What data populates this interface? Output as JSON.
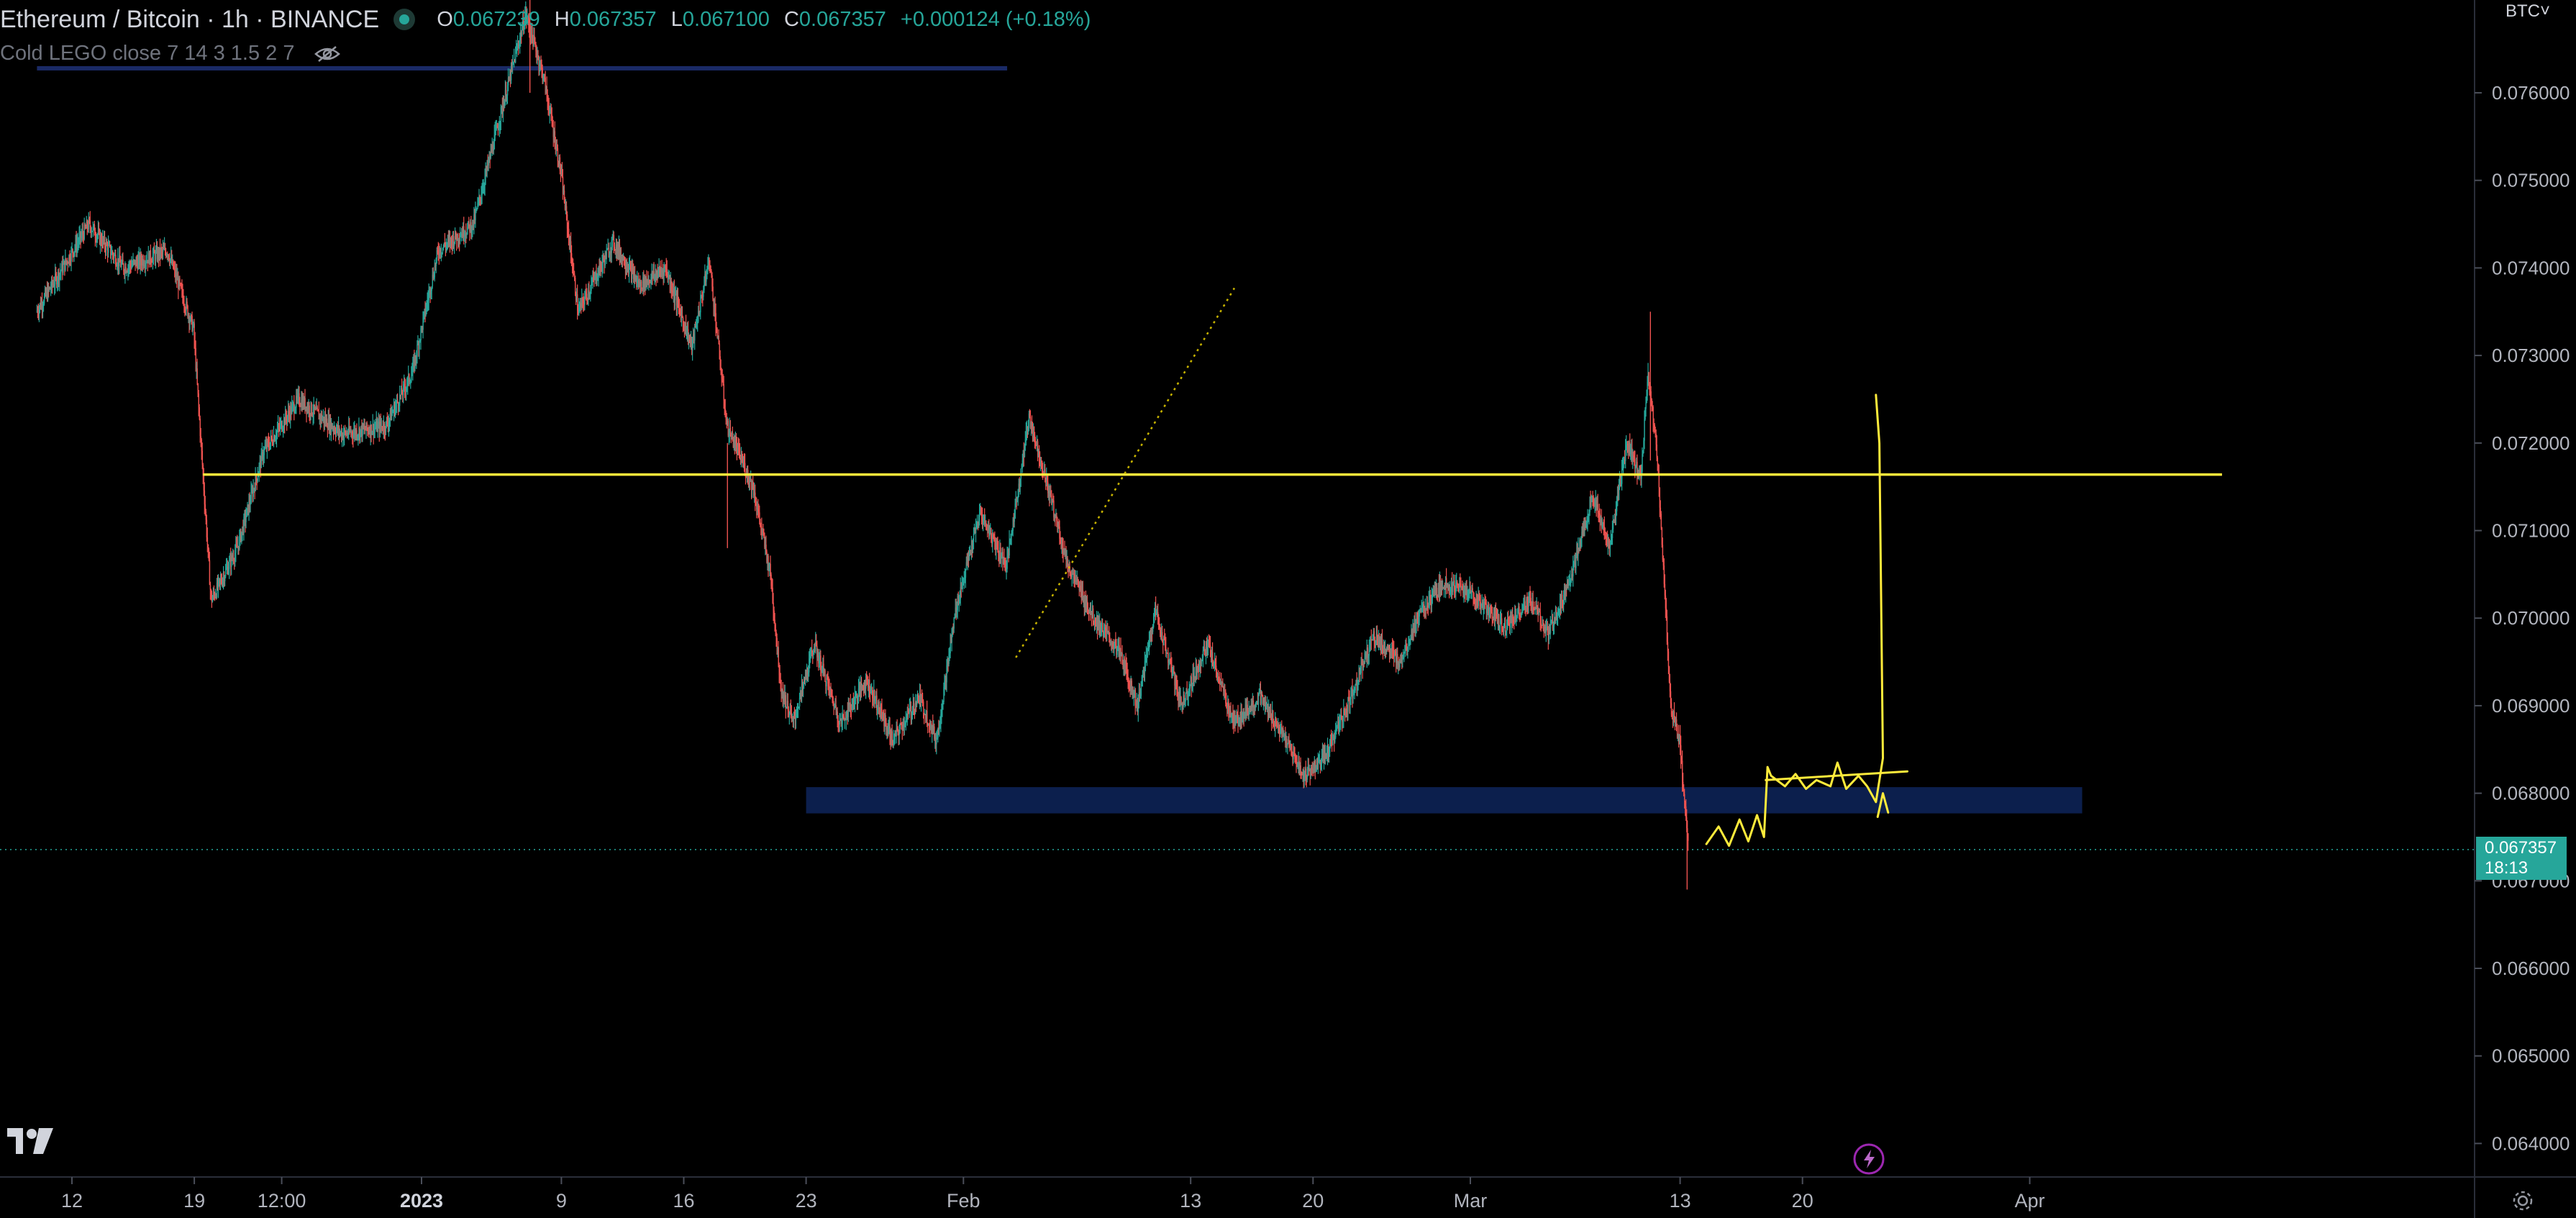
{
  "header": {
    "symbol": "Ethereum / Bitcoin · 1h · BINANCE",
    "ohlc": [
      {
        "k": "O",
        "v": "0.067239"
      },
      {
        "k": "H",
        "v": "0.067357"
      },
      {
        "k": "L",
        "v": "0.067100"
      },
      {
        "k": "C",
        "v": "0.067357"
      }
    ],
    "change": "+0.000124 (+0.18%)",
    "indicator": "Cold LEGO close 7 14 3 1.5 2 7"
  },
  "axis": {
    "unit": "BTC˅",
    "last_price": "0.067357",
    "countdown": "18:13"
  },
  "colors": {
    "background": "#000000",
    "up": "#26a69a",
    "down": "#ef5350",
    "support_zone": "#0c1f4d",
    "resistance": "#ffeb3b",
    "drawing": "#ffeb3b"
  },
  "icons": [
    "tradingview-logo-icon",
    "bolt-icon",
    "gear-icon",
    "eye-off-icon"
  ],
  "chart_data": {
    "type": "candlestick",
    "title": "Ethereum / Bitcoin · 1h · BINANCE",
    "y_ticks": [
      "0.076000",
      "0.075000",
      "0.074000",
      "0.073000",
      "0.072000",
      "0.071000",
      "0.070000",
      "0.069000",
      "0.068000",
      "0.067000",
      "0.066000",
      "0.065000",
      "0.064000"
    ],
    "ylim": [
      0.0636,
      0.0772
    ],
    "x_ticks": [
      {
        "label": "12",
        "bold": false
      },
      {
        "label": "19",
        "bold": false
      },
      {
        "label": "12:00",
        "bold": false
      },
      {
        "label": "2023",
        "bold": true
      },
      {
        "label": "9",
        "bold": false
      },
      {
        "label": "16",
        "bold": false
      },
      {
        "label": "23",
        "bold": false
      },
      {
        "label": "Feb",
        "bold": false
      },
      {
        "label": "13",
        "bold": false
      },
      {
        "label": "20",
        "bold": false
      },
      {
        "label": "Mar",
        "bold": false
      },
      {
        "label": "13",
        "bold": false
      },
      {
        "label": "20",
        "bold": false
      },
      {
        "label": "Apr",
        "bold": false
      }
    ],
    "x_tick_days": [
      0,
      7,
      12,
      20,
      28,
      35,
      42,
      51,
      64,
      71,
      80,
      92,
      99,
      112
    ],
    "price_path": [
      [
        -2.0,
        0.0735
      ],
      [
        1.0,
        0.0745
      ],
      [
        3.0,
        0.074
      ],
      [
        5.5,
        0.0742
      ],
      [
        7.0,
        0.0733
      ],
      [
        8.0,
        0.0702
      ],
      [
        9.5,
        0.0708
      ],
      [
        11.0,
        0.0719
      ],
      [
        13.0,
        0.0725
      ],
      [
        15.5,
        0.0721
      ],
      [
        18.0,
        0.0722
      ],
      [
        19.5,
        0.0728
      ],
      [
        21.0,
        0.0742
      ],
      [
        23.0,
        0.0745
      ],
      [
        24.5,
        0.0757
      ],
      [
        26.0,
        0.0769
      ],
      [
        27.0,
        0.0762
      ],
      [
        28.0,
        0.0751
      ],
      [
        29.0,
        0.0735
      ],
      [
        31.0,
        0.0743
      ],
      [
        32.5,
        0.0738
      ],
      [
        34.0,
        0.074
      ],
      [
        35.5,
        0.0731
      ],
      [
        36.5,
        0.0741
      ],
      [
        37.5,
        0.0722
      ],
      [
        39.0,
        0.0715
      ],
      [
        40.0,
        0.0705
      ],
      [
        40.6,
        0.0692
      ],
      [
        41.3,
        0.0688
      ],
      [
        42.5,
        0.0697
      ],
      [
        44.0,
        0.0688
      ],
      [
        45.5,
        0.0693
      ],
      [
        47.0,
        0.0686
      ],
      [
        48.5,
        0.0691
      ],
      [
        49.5,
        0.0686
      ],
      [
        50.6,
        0.0701
      ],
      [
        52.0,
        0.0712
      ],
      [
        53.5,
        0.0706
      ],
      [
        54.8,
        0.0723
      ],
      [
        56.0,
        0.0714
      ],
      [
        57.0,
        0.0706
      ],
      [
        58.5,
        0.07
      ],
      [
        60.0,
        0.0696
      ],
      [
        61.0,
        0.069
      ],
      [
        62.0,
        0.0701
      ],
      [
        63.5,
        0.069
      ],
      [
        65.0,
        0.0697
      ],
      [
        66.5,
        0.0688
      ],
      [
        68.0,
        0.0691
      ],
      [
        69.5,
        0.0686
      ],
      [
        70.5,
        0.0682
      ],
      [
        71.7,
        0.0684
      ],
      [
        73.0,
        0.069
      ],
      [
        74.5,
        0.0698
      ],
      [
        76.0,
        0.0695
      ],
      [
        77.0,
        0.07
      ],
      [
        78.5,
        0.0704
      ],
      [
        80.0,
        0.0703
      ],
      [
        82.0,
        0.0699
      ],
      [
        83.5,
        0.0702
      ],
      [
        84.5,
        0.0698
      ],
      [
        86.0,
        0.0706
      ],
      [
        87.0,
        0.0714
      ],
      [
        88.0,
        0.0708
      ],
      [
        89.0,
        0.072
      ],
      [
        89.8,
        0.0716
      ],
      [
        90.2,
        0.0728
      ],
      [
        90.7,
        0.0719
      ],
      [
        91.0,
        0.0709
      ],
      [
        91.5,
        0.069
      ],
      [
        92.0,
        0.0686
      ],
      [
        92.5,
        0.0674
      ]
    ],
    "support_zone": {
      "x_start_day": 42.0,
      "x_end_day": 115.0,
      "y_low": 0.06777,
      "y_high": 0.06807
    },
    "upper_zone": {
      "x_start_day": -2.0,
      "x_end_day": 53.5,
      "y": 0.07628
    },
    "resistance_line": {
      "x_start_day": 7.5,
      "x_end_day": 123.0,
      "y": 0.07164
    },
    "trendline": {
      "x1_day": 54.0,
      "y1": 0.06955,
      "x2_day": 66.5,
      "y2": 0.07377
    },
    "last_price_line": 0.067357
  }
}
